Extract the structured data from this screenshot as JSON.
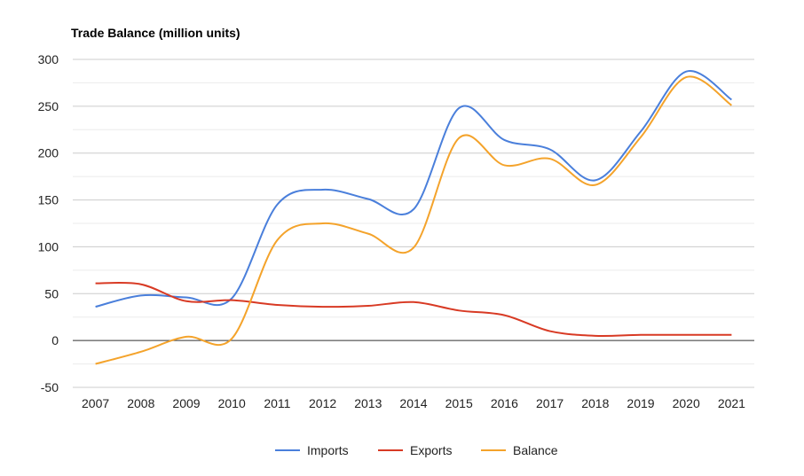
{
  "chart_data": {
    "type": "line",
    "title": "Trade Balance (million units)",
    "xlabel": "",
    "ylabel": "",
    "categories": [
      "2007",
      "2008",
      "2009",
      "2010",
      "2011",
      "2012",
      "2013",
      "2014",
      "2015",
      "2016",
      "2017",
      "2018",
      "2019",
      "2020",
      "2021"
    ],
    "ylim": [
      -50,
      300
    ],
    "yticks": [
      -50,
      0,
      50,
      100,
      150,
      200,
      250,
      300
    ],
    "grid": true,
    "legend_position": "bottom",
    "series": [
      {
        "name": "Imports",
        "color": "#4a7fdb",
        "values": [
          36,
          48,
          46,
          45,
          145,
          161,
          151,
          140,
          248,
          214,
          204,
          171,
          223,
          287,
          257
        ]
      },
      {
        "name": "Exports",
        "color": "#d83a24",
        "values": [
          61,
          60,
          42,
          43,
          38,
          36,
          37,
          41,
          32,
          27,
          10,
          5,
          6,
          6,
          6
        ]
      },
      {
        "name": "Balance",
        "color": "#f4a32b",
        "values": [
          -25,
          -12,
          4,
          2,
          107,
          125,
          114,
          99,
          216,
          187,
          194,
          166,
          217,
          281,
          251
        ]
      }
    ]
  }
}
